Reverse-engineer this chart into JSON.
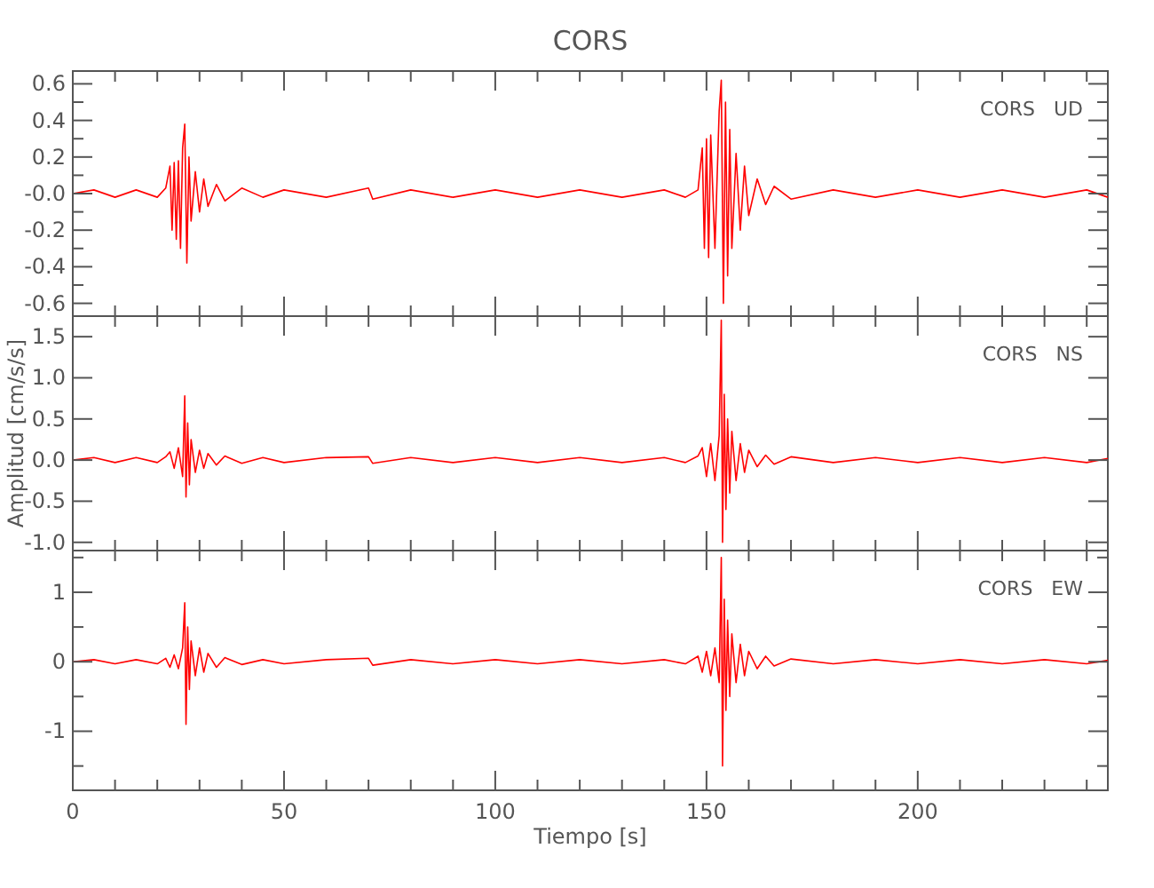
{
  "chart_data": [
    {
      "type": "line",
      "title": "CORS",
      "annotations": [
        "CORS   UD"
      ],
      "xlim": [
        0,
        245
      ],
      "ylim": [
        -0.67,
        0.67
      ],
      "tick_labels": "y",
      "grid": false,
      "xticks": [
        0,
        {
          "value": 10,
          "label": null
        },
        {
          "value": 20,
          "label": null
        },
        {
          "value": 30,
          "label": null
        },
        {
          "value": 40,
          "label": null
        },
        50,
        {
          "value": 60,
          "label": null
        },
        {
          "value": 70,
          "label": null
        },
        {
          "value": 80,
          "label": null
        },
        {
          "value": 90,
          "label": null
        },
        100,
        {
          "value": 110,
          "label": null
        },
        {
          "value": 120,
          "label": null
        },
        {
          "value": 130,
          "label": null
        },
        {
          "value": 140,
          "label": null
        },
        150,
        {
          "value": 160,
          "label": null
        },
        {
          "value": 170,
          "label": null
        },
        {
          "value": 180,
          "label": null
        },
        {
          "value": 190,
          "label": null
        },
        200,
        {
          "value": 210,
          "label": null
        },
        {
          "value": 220,
          "label": null
        },
        {
          "value": 230,
          "label": null
        },
        {
          "value": 240,
          "label": null
        }
      ],
      "yticks": [
        -0.6,
        {
          "value": -0.5,
          "label": null
        },
        -0.4,
        {
          "value": -0.3,
          "label": null
        },
        -0.2,
        {
          "value": -0.1,
          "label": null
        },
        {
          "value": 0,
          "label": "-0.0"
        },
        {
          "value": 0.1,
          "label": null
        },
        0.2,
        {
          "value": 0.3,
          "label": null
        },
        0.4,
        {
          "value": 0.5,
          "label": null
        },
        0.6
      ],
      "series": [
        {
          "color": "#ff0000",
          "x": [
            0,
            5,
            10,
            15,
            20,
            22,
            23,
            23.5,
            24,
            24.5,
            25,
            25.5,
            26,
            26.5,
            27,
            27.5,
            28,
            29,
            30,
            31,
            32,
            34,
            36,
            40,
            45,
            50,
            60,
            70,
            71,
            80,
            90,
            100,
            110,
            120,
            130,
            140,
            145,
            148,
            149,
            149.5,
            150,
            150.5,
            151,
            152,
            153,
            153.5,
            154,
            154.5,
            155,
            155.5,
            156,
            157,
            158,
            159,
            160,
            162,
            164,
            166,
            170,
            180,
            190,
            200,
            210,
            220,
            230,
            240,
            245
          ],
          "values": [
            0,
            0.02,
            -0.02,
            0.02,
            -0.02,
            0.03,
            0.15,
            -0.2,
            0.17,
            -0.25,
            0.18,
            -0.3,
            0.25,
            0.38,
            -0.38,
            0.2,
            -0.15,
            0.12,
            -0.1,
            0.08,
            -0.07,
            0.05,
            -0.04,
            0.03,
            -0.02,
            0.02,
            -0.02,
            0.03,
            -0.03,
            0.02,
            -0.02,
            0.02,
            -0.02,
            0.02,
            -0.02,
            0.02,
            -0.02,
            0.02,
            0.25,
            -0.3,
            0.3,
            -0.35,
            0.32,
            -0.3,
            0.45,
            0.62,
            -0.6,
            0.5,
            -0.45,
            0.35,
            -0.3,
            0.22,
            -0.2,
            0.15,
            -0.12,
            0.08,
            -0.06,
            0.04,
            -0.03,
            0.02,
            -0.02,
            0.02,
            -0.02,
            0.02,
            -0.02,
            0.02,
            -0.02
          ]
        }
      ]
    },
    {
      "type": "line",
      "ylabel": "Amplitud [cm/s/s]",
      "annotations": [
        "CORS   NS"
      ],
      "xlim": [
        0,
        245
      ],
      "ylim": [
        -1.1,
        1.75
      ],
      "tick_labels": "y",
      "grid": false,
      "xticks": [
        0,
        {
          "value": 10,
          "label": null
        },
        {
          "value": 20,
          "label": null
        },
        {
          "value": 30,
          "label": null
        },
        {
          "value": 40,
          "label": null
        },
        50,
        {
          "value": 60,
          "label": null
        },
        {
          "value": 70,
          "label": null
        },
        {
          "value": 80,
          "label": null
        },
        {
          "value": 90,
          "label": null
        },
        100,
        {
          "value": 110,
          "label": null
        },
        {
          "value": 120,
          "label": null
        },
        {
          "value": 130,
          "label": null
        },
        {
          "value": 140,
          "label": null
        },
        150,
        {
          "value": 160,
          "label": null
        },
        {
          "value": 170,
          "label": null
        },
        {
          "value": 180,
          "label": null
        },
        {
          "value": 190,
          "label": null
        },
        200,
        {
          "value": 210,
          "label": null
        },
        {
          "value": 220,
          "label": null
        },
        {
          "value": 230,
          "label": null
        },
        {
          "value": 240,
          "label": null
        }
      ],
      "yticks": [
        {
          "value": -1,
          "label": "-1.0"
        },
        -0.5,
        {
          "value": 0,
          "label": "0.0"
        },
        0.5,
        {
          "value": 1,
          "label": "1.0"
        },
        1.5
      ],
      "series": [
        {
          "color": "#ff0000",
          "x": [
            0,
            5,
            10,
            15,
            20,
            22,
            23,
            24,
            25,
            26,
            26.5,
            26.8,
            27.2,
            27.6,
            28,
            29,
            30,
            31,
            32,
            34,
            36,
            40,
            45,
            50,
            60,
            70,
            71,
            80,
            90,
            100,
            110,
            120,
            130,
            140,
            145,
            148,
            149,
            150,
            151,
            152,
            153,
            153.5,
            153.8,
            154.2,
            154.6,
            155,
            155.5,
            156,
            157,
            158,
            159,
            160,
            162,
            164,
            166,
            170,
            180,
            190,
            200,
            210,
            220,
            230,
            240,
            245
          ],
          "values": [
            0,
            0.03,
            -0.03,
            0.03,
            -0.03,
            0.04,
            0.1,
            -0.1,
            0.15,
            -0.2,
            0.78,
            -0.45,
            0.45,
            -0.3,
            0.25,
            -0.15,
            0.12,
            -0.1,
            0.08,
            -0.06,
            0.05,
            -0.04,
            0.03,
            -0.03,
            0.03,
            0.04,
            -0.04,
            0.03,
            -0.03,
            0.03,
            -0.03,
            0.03,
            -0.03,
            0.03,
            -0.03,
            0.05,
            0.15,
            -0.2,
            0.2,
            -0.25,
            0.3,
            1.7,
            -1.0,
            0.8,
            -0.6,
            0.5,
            -0.4,
            0.35,
            -0.25,
            0.2,
            -0.15,
            0.12,
            -0.08,
            0.06,
            -0.05,
            0.04,
            -0.03,
            0.03,
            -0.03,
            0.03,
            -0.03,
            0.03,
            -0.03,
            0.02
          ]
        }
      ]
    },
    {
      "type": "line",
      "xlabel": "Tiempo [s]",
      "annotations": [
        "CORS   EW"
      ],
      "xlim": [
        0,
        245
      ],
      "ylim": [
        -1.85,
        1.6
      ],
      "grid": false,
      "xticks": [
        0,
        {
          "value": 10,
          "label": null
        },
        {
          "value": 20,
          "label": null
        },
        {
          "value": 30,
          "label": null
        },
        {
          "value": 40,
          "label": null
        },
        50,
        {
          "value": 60,
          "label": null
        },
        {
          "value": 70,
          "label": null
        },
        {
          "value": 80,
          "label": null
        },
        {
          "value": 90,
          "label": null
        },
        100,
        {
          "value": 110,
          "label": null
        },
        {
          "value": 120,
          "label": null
        },
        {
          "value": 130,
          "label": null
        },
        {
          "value": 140,
          "label": null
        },
        150,
        {
          "value": 160,
          "label": null
        },
        {
          "value": 170,
          "label": null
        },
        {
          "value": 180,
          "label": null
        },
        {
          "value": 190,
          "label": null
        },
        200,
        {
          "value": 210,
          "label": null
        },
        {
          "value": 220,
          "label": null
        },
        {
          "value": 230,
          "label": null
        },
        {
          "value": 240,
          "label": null
        }
      ],
      "yticks": [
        {
          "value": -1.5,
          "label": null
        },
        -1,
        {
          "value": -0.5,
          "label": null
        },
        0,
        {
          "value": 0.5,
          "label": null
        },
        1,
        {
          "value": 1.5,
          "label": null
        }
      ],
      "series": [
        {
          "color": "#ff0000",
          "x": [
            0,
            5,
            10,
            15,
            20,
            22,
            23,
            24,
            25,
            26,
            26.5,
            26.8,
            27.2,
            27.6,
            28,
            29,
            30,
            31,
            32,
            34,
            36,
            40,
            45,
            50,
            60,
            70,
            71,
            80,
            90,
            100,
            110,
            120,
            130,
            140,
            145,
            148,
            149,
            150,
            151,
            152,
            153,
            153.5,
            153.8,
            154.2,
            154.6,
            155,
            155.5,
            156,
            157,
            158,
            159,
            160,
            162,
            164,
            166,
            170,
            180,
            190,
            200,
            210,
            220,
            230,
            240,
            245
          ],
          "values": [
            0,
            0.03,
            -0.03,
            0.03,
            -0.03,
            0.05,
            -0.08,
            0.1,
            -0.1,
            0.2,
            0.85,
            -0.9,
            0.5,
            -0.4,
            0.3,
            -0.2,
            0.2,
            -0.15,
            0.12,
            -0.08,
            0.06,
            -0.04,
            0.03,
            -0.03,
            0.03,
            0.05,
            -0.05,
            0.03,
            -0.03,
            0.03,
            -0.03,
            0.03,
            -0.03,
            0.03,
            -0.03,
            0.08,
            -0.15,
            0.15,
            -0.2,
            0.2,
            -0.3,
            1.5,
            -1.5,
            0.9,
            -0.7,
            0.6,
            -0.5,
            0.4,
            -0.3,
            0.25,
            -0.2,
            0.15,
            -0.1,
            0.08,
            -0.06,
            0.04,
            -0.03,
            0.03,
            -0.03,
            0.03,
            -0.03,
            0.03,
            -0.03,
            0.02
          ]
        }
      ]
    }
  ]
}
